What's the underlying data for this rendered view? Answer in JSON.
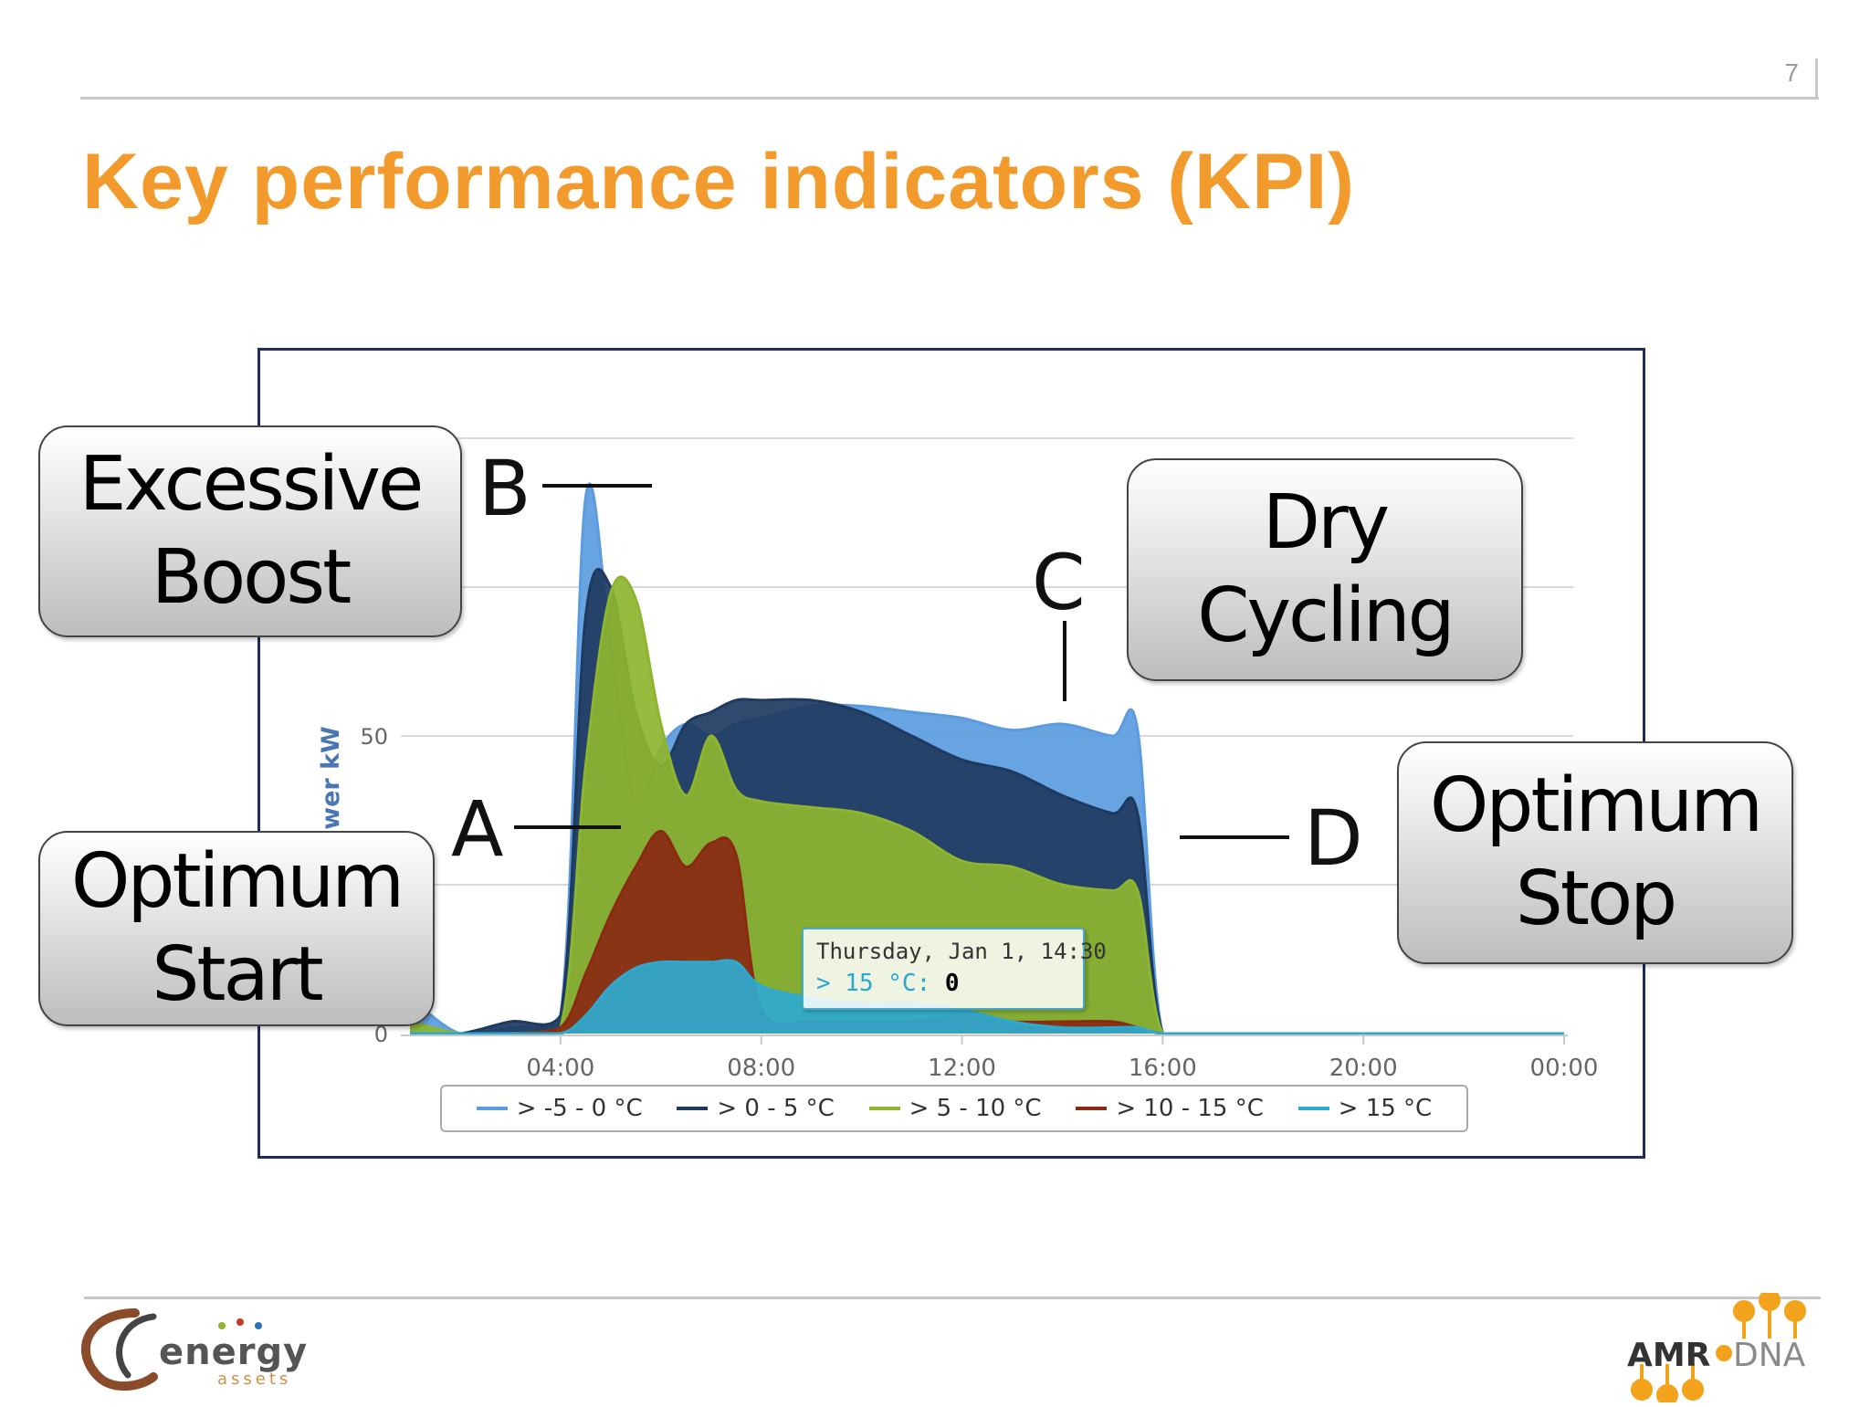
{
  "slide": {
    "number": "7",
    "title": "Key performance indicators (KPI)"
  },
  "callouts": {
    "excessive_boost": {
      "line1": "Excessive",
      "line2": "Boost"
    },
    "optimum_start": {
      "line1": "Optimum",
      "line2": "Start"
    },
    "dry_cycling": {
      "line1": "Dry",
      "line2": "Cycling"
    },
    "optimum_stop": {
      "line1": "Optimum",
      "line2": "Stop"
    }
  },
  "markers": {
    "a": "A",
    "b": "B",
    "c": "C",
    "d": "D"
  },
  "tooltip": {
    "date": "Thursday, Jan 1, 14:30",
    "series": "> 15 °C",
    "value": "0"
  },
  "logos": {
    "left": {
      "name": "energy-assets-logo",
      "word": "energy",
      "sub": "assets"
    },
    "right": {
      "name": "amr-dna-logo",
      "part1": "AMR",
      "part2": "DNA"
    }
  },
  "colors": {
    "title": "#f39a2d",
    "series": [
      "#5b9be0",
      "#1f3a5f",
      "#8db52f",
      "#8a2a12",
      "#2ea9cf"
    ]
  },
  "chart_data": {
    "type": "area",
    "stacked": false,
    "title": "",
    "xlabel": "",
    "ylabel": "Power kW",
    "x": [
      "01:00",
      "02:00",
      "03:00",
      "04:00",
      "04:30",
      "05:00",
      "05:30",
      "06:00",
      "06:30",
      "07:00",
      "07:30",
      "08:00",
      "09:00",
      "10:00",
      "11:00",
      "12:00",
      "13:00",
      "14:00",
      "15:00",
      "15:30",
      "16:00",
      "17:00",
      "20:00",
      "00:00"
    ],
    "x_ticks": [
      "04:00",
      "08:00",
      "12:00",
      "16:00",
      "20:00",
      "00:00"
    ],
    "y_ticks": [
      "0",
      "50"
    ],
    "ylim": [
      0,
      100
    ],
    "grid": true,
    "legend": "bottom",
    "series": [
      {
        "name": "> -5 - 0 °C",
        "values": [
          6,
          0,
          1,
          3,
          90,
          65,
          38,
          48,
          52,
          50,
          52,
          53,
          55,
          55,
          54,
          53,
          51,
          52,
          50,
          51,
          0,
          0,
          0,
          0
        ]
      },
      {
        "name": "> 0 - 5 °C",
        "values": [
          0,
          0,
          2,
          3,
          70,
          75,
          54,
          45,
          52,
          54,
          56,
          56,
          56,
          54,
          50,
          46,
          44,
          40,
          37,
          37,
          0,
          0,
          0,
          0
        ]
      },
      {
        "name": "> 5 - 10 °C",
        "values": [
          2,
          0,
          0,
          1,
          45,
          74,
          73,
          52,
          40,
          50,
          41,
          39,
          38,
          37,
          34,
          29,
          28,
          25,
          24,
          24,
          0,
          0,
          0,
          0
        ]
      },
      {
        "name": "> 10 - 15 °C",
        "values": [
          0,
          0,
          0,
          1,
          10,
          20,
          28,
          34,
          28,
          32,
          30,
          4,
          2,
          2,
          2,
          3,
          2,
          2,
          2,
          1,
          0,
          0,
          0,
          0
        ]
      },
      {
        "name": "> 15 °C",
        "values": [
          0,
          0,
          0,
          0,
          3,
          8,
          11,
          12,
          12,
          12,
          12,
          8,
          6,
          5,
          5,
          4,
          2,
          1,
          1,
          1,
          0,
          0,
          0,
          0
        ]
      }
    ]
  }
}
